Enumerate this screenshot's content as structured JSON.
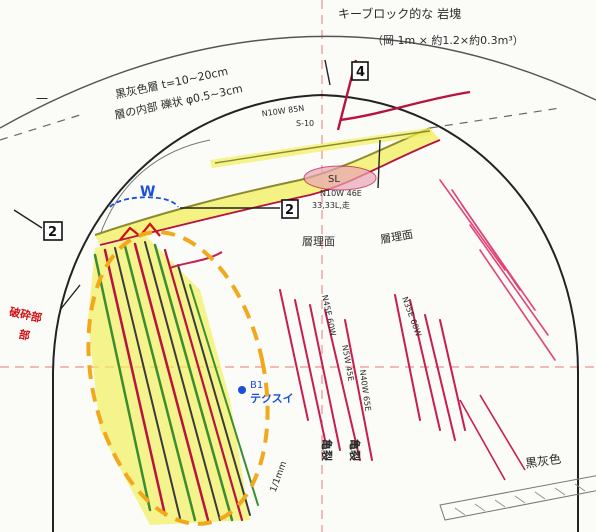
{
  "notes": {
    "top_right_line1": "キーブロック的な 岩塊",
    "top_right_line2": "（岡 1m × 約1.2×約0.3m³）",
    "top_left_line1": "黒灰色層 t=10~20cm",
    "top_left_line2": "層の内部 礫状 φ0.5~3cm",
    "left_red_line1": "破砕部",
    "left_red_line2": "部",
    "bottom_right": "黒灰色",
    "bottom_small": "1/1mm",
    "top_left_margin": "一"
  },
  "labels": {
    "box_4": "4",
    "box_2_left": "2",
    "box_2_center": "2",
    "w_mark": "W",
    "b1_point": "B1",
    "texture_blue": "テクスイ"
  },
  "annotations": {
    "dip_1": "N10W 85N",
    "dip_1b": "S-10",
    "sl_mark": "SL",
    "dip_2": "N10W 46E",
    "dip_3": "33,33L,走",
    "layer_a": "層理面",
    "layer_b": "層理面",
    "dip_4": "N45E 60W",
    "dip_5": "N35E 60W",
    "dip_6": "N5W 45E",
    "dip_7": "N40W 65E",
    "crack_a": "亀裂",
    "crack_b": "亀裂"
  },
  "colors": {
    "ink": "#2a2a2a",
    "red": "#d10f12",
    "crimson": "#b8123f",
    "pink": "#e0457a",
    "yellow": "#f2ef5c",
    "olive": "#8d8a2e",
    "green": "#3b8d2f",
    "blue": "#1b4fd8",
    "orange_dashed": "#f2a81d",
    "guide_dashed": "#f09090"
  }
}
